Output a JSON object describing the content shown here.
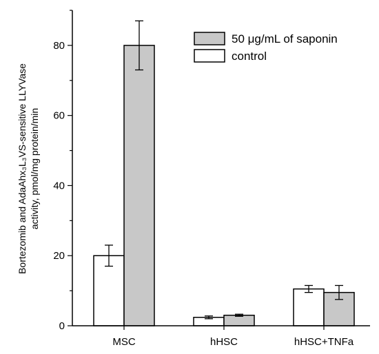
{
  "chart_data": {
    "type": "bar",
    "title": "",
    "categories": [
      "MSC",
      "hHSC",
      "hHSC+TNFa"
    ],
    "series": [
      {
        "name": "control",
        "color": "#ffffff",
        "values": [
          20,
          2.4,
          10.5
        ],
        "errors": [
          3.0,
          0.4,
          1.0
        ]
      },
      {
        "name": "50 μg/mL of saponin",
        "color": "#c8c8c8",
        "values": [
          80,
          3.0,
          9.5
        ],
        "errors": [
          7.0,
          0.3,
          2.0
        ]
      }
    ],
    "ylabel_line1": "Bortezomib and AdaAhx₃L₃VS-sensitive LLYVase",
    "ylabel_line2": "activity, pmol/mg protein/min",
    "xlabel": "",
    "ylim": [
      0,
      90
    ],
    "yticks": [
      0,
      20,
      40,
      60,
      80
    ],
    "legend_position": "top-right",
    "grid": false
  }
}
